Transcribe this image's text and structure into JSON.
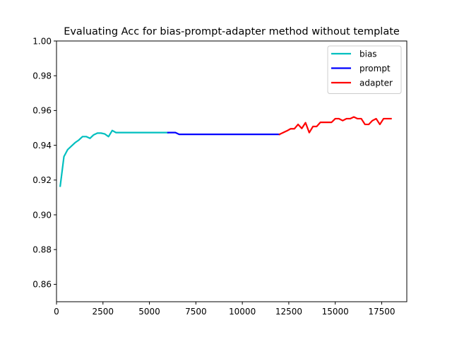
{
  "chart_data": {
    "type": "line",
    "title": "Evaluating Acc for bias-prompt-adapter method without template",
    "xlabel": "",
    "ylabel": "",
    "xlim": [
      0,
      18850
    ],
    "ylim": [
      0.85,
      1.0
    ],
    "xticks": [
      0,
      2500,
      5000,
      7500,
      10000,
      12500,
      15000,
      17500
    ],
    "xtick_labels": [
      "0",
      "2500",
      "5000",
      "7500",
      "10000",
      "12500",
      "15000",
      "17500"
    ],
    "yticks": [
      0.86,
      0.88,
      0.9,
      0.92,
      0.94,
      0.96,
      0.98,
      1.0
    ],
    "ytick_labels": [
      "0.86",
      "0.88",
      "0.90",
      "0.92",
      "0.94",
      "0.96",
      "0.98",
      "1.00"
    ],
    "grid": false,
    "legend_position": "top-right",
    "series": [
      {
        "name": "bias",
        "color": "#00bfbf",
        "x": [
          200,
          400,
          600,
          800,
          1000,
          1200,
          1400,
          1600,
          1800,
          2000,
          2200,
          2400,
          2600,
          2800,
          3000,
          3200,
          3400,
          3600,
          3800,
          4000,
          4200,
          4400,
          4600,
          4800,
          5000,
          5200,
          5400,
          5600,
          5800,
          6000
        ],
        "y": [
          0.9165,
          0.9335,
          0.9375,
          0.9395,
          0.9415,
          0.943,
          0.945,
          0.945,
          0.944,
          0.946,
          0.947,
          0.947,
          0.9465,
          0.945,
          0.9485,
          0.9473,
          0.9473,
          0.9473,
          0.9473,
          0.9473,
          0.9473,
          0.9473,
          0.9473,
          0.9473,
          0.9473,
          0.9473,
          0.9473,
          0.9473,
          0.9473,
          0.9473
        ]
      },
      {
        "name": "prompt",
        "color": "#0000ff",
        "x": [
          6000,
          6200,
          6400,
          6600,
          6800,
          7000,
          7500,
          8000,
          8500,
          9000,
          9500,
          10000,
          10500,
          11000,
          11500,
          12000
        ],
        "y": [
          0.9473,
          0.9473,
          0.9473,
          0.9463,
          0.9463,
          0.9463,
          0.9463,
          0.9463,
          0.9463,
          0.9463,
          0.9463,
          0.9463,
          0.9463,
          0.9463,
          0.9463,
          0.9463
        ]
      },
      {
        "name": "adapter",
        "color": "#ff0000",
        "x": [
          12000,
          12200,
          12400,
          12600,
          12800,
          13000,
          13200,
          13400,
          13600,
          13800,
          14000,
          14200,
          14400,
          14600,
          14800,
          15000,
          15200,
          15400,
          15600,
          15800,
          16000,
          16200,
          16400,
          16600,
          16800,
          17000,
          17200,
          17400,
          17600,
          17800,
          18000
        ],
        "y": [
          0.9463,
          0.9473,
          0.9483,
          0.9495,
          0.9495,
          0.952,
          0.9497,
          0.953,
          0.9473,
          0.9508,
          0.9508,
          0.9532,
          0.9532,
          0.9532,
          0.9532,
          0.9553,
          0.9553,
          0.9542,
          0.9553,
          0.9553,
          0.9563,
          0.9553,
          0.9553,
          0.952,
          0.952,
          0.9542,
          0.9553,
          0.952,
          0.9553,
          0.9553,
          0.9553
        ]
      }
    ]
  }
}
